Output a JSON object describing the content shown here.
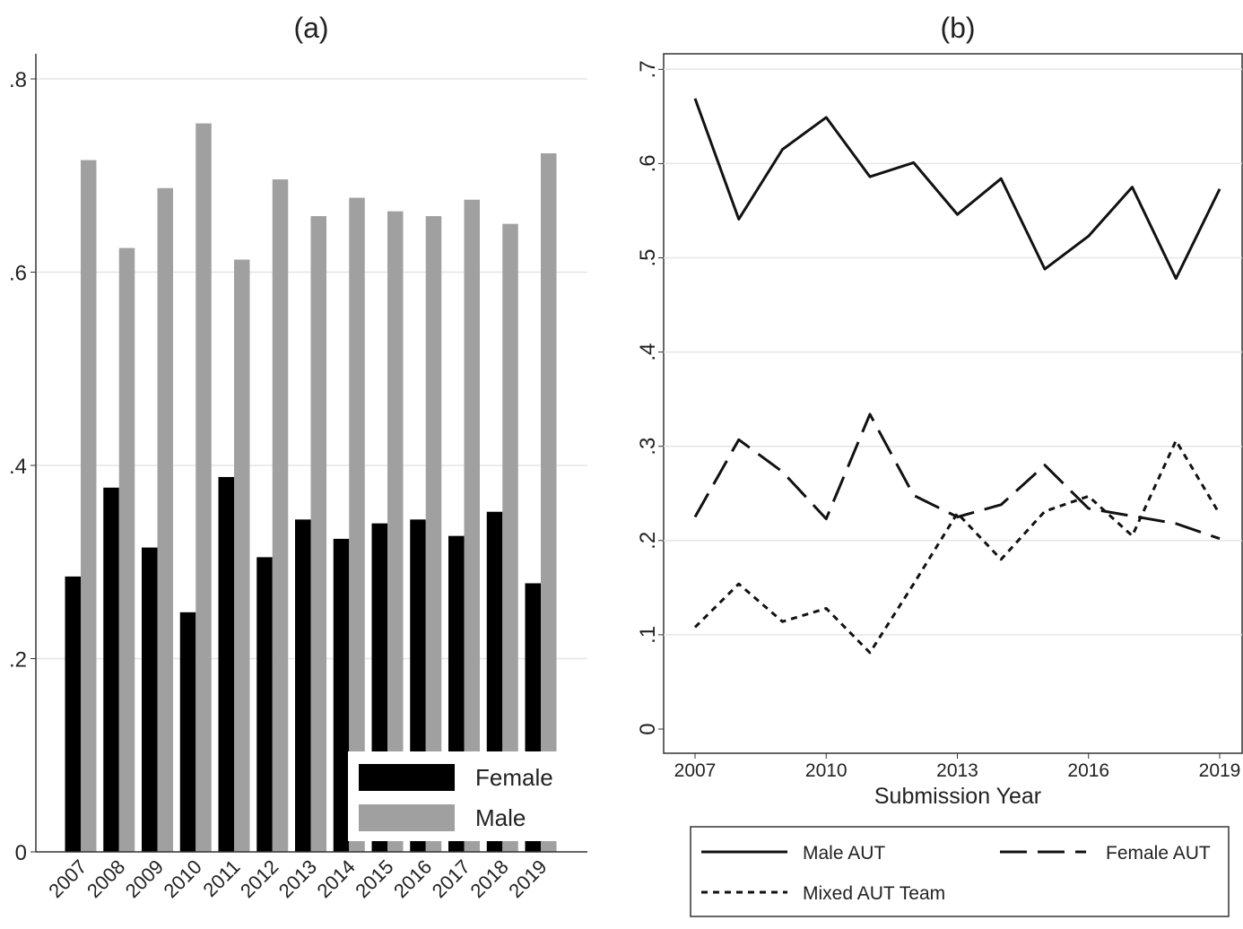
{
  "chart_data": [
    {
      "type": "bar",
      "title": "(a)",
      "categories": [
        "2007",
        "2008",
        "2009",
        "2010",
        "2011",
        "2012",
        "2013",
        "2014",
        "2015",
        "2016",
        "2017",
        "2018",
        "2019"
      ],
      "series": [
        {
          "name": "Female",
          "color": "#000000",
          "values": [
            0.285,
            0.377,
            0.315,
            0.248,
            0.388,
            0.305,
            0.344,
            0.324,
            0.34,
            0.344,
            0.327,
            0.352,
            0.278
          ]
        },
        {
          "name": "Male",
          "color": "#a0a0a0",
          "values": [
            0.716,
            0.625,
            0.687,
            0.754,
            0.613,
            0.696,
            0.658,
            0.677,
            0.663,
            0.658,
            0.675,
            0.65,
            0.723
          ]
        }
      ],
      "yticks": [
        0,
        0.2,
        0.4,
        0.6,
        0.8
      ],
      "ytick_labels": [
        "0",
        ".2",
        ".4",
        ".6",
        ".8"
      ],
      "ylim": [
        0,
        0.826
      ],
      "xlabel": "",
      "ylabel": "",
      "legend": "bottom-right",
      "grid": true
    },
    {
      "type": "line",
      "title": "(b)",
      "x": [
        2007,
        2008,
        2009,
        2010,
        2011,
        2012,
        2013,
        2014,
        2015,
        2016,
        2017,
        2018,
        2019
      ],
      "series": [
        {
          "name": "Male AUT",
          "style": "solid",
          "values": [
            0.669,
            0.541,
            0.615,
            0.649,
            0.586,
            0.601,
            0.546,
            0.584,
            0.488,
            0.523,
            0.575,
            0.478,
            0.573
          ]
        },
        {
          "name": "Female AUT",
          "style": "dashed",
          "values": [
            0.225,
            0.307,
            0.273,
            0.223,
            0.334,
            0.248,
            0.225,
            0.238,
            0.28,
            0.234,
            0.226,
            0.218,
            0.202
          ]
        },
        {
          "name": "Mixed AUT Team",
          "style": "dotted",
          "values": [
            0.108,
            0.154,
            0.114,
            0.128,
            0.081,
            0.154,
            0.229,
            0.18,
            0.231,
            0.247,
            0.205,
            0.306,
            0.228
          ]
        }
      ],
      "xticks": [
        2007,
        2010,
        2013,
        2016,
        2019
      ],
      "xtick_labels": [
        "2007",
        "2010",
        "2013",
        "2016",
        "2019"
      ],
      "yticks": [
        0,
        0.1,
        0.2,
        0.3,
        0.4,
        0.5,
        0.6,
        0.7
      ],
      "ytick_labels": [
        "0",
        ".1",
        ".2",
        ".3",
        ".4",
        ".5",
        ".6",
        ".7"
      ],
      "ylim": [
        0,
        0.74
      ],
      "xlabel": "Submission Year",
      "ylabel": "",
      "legend": "bottom",
      "grid": true
    }
  ]
}
